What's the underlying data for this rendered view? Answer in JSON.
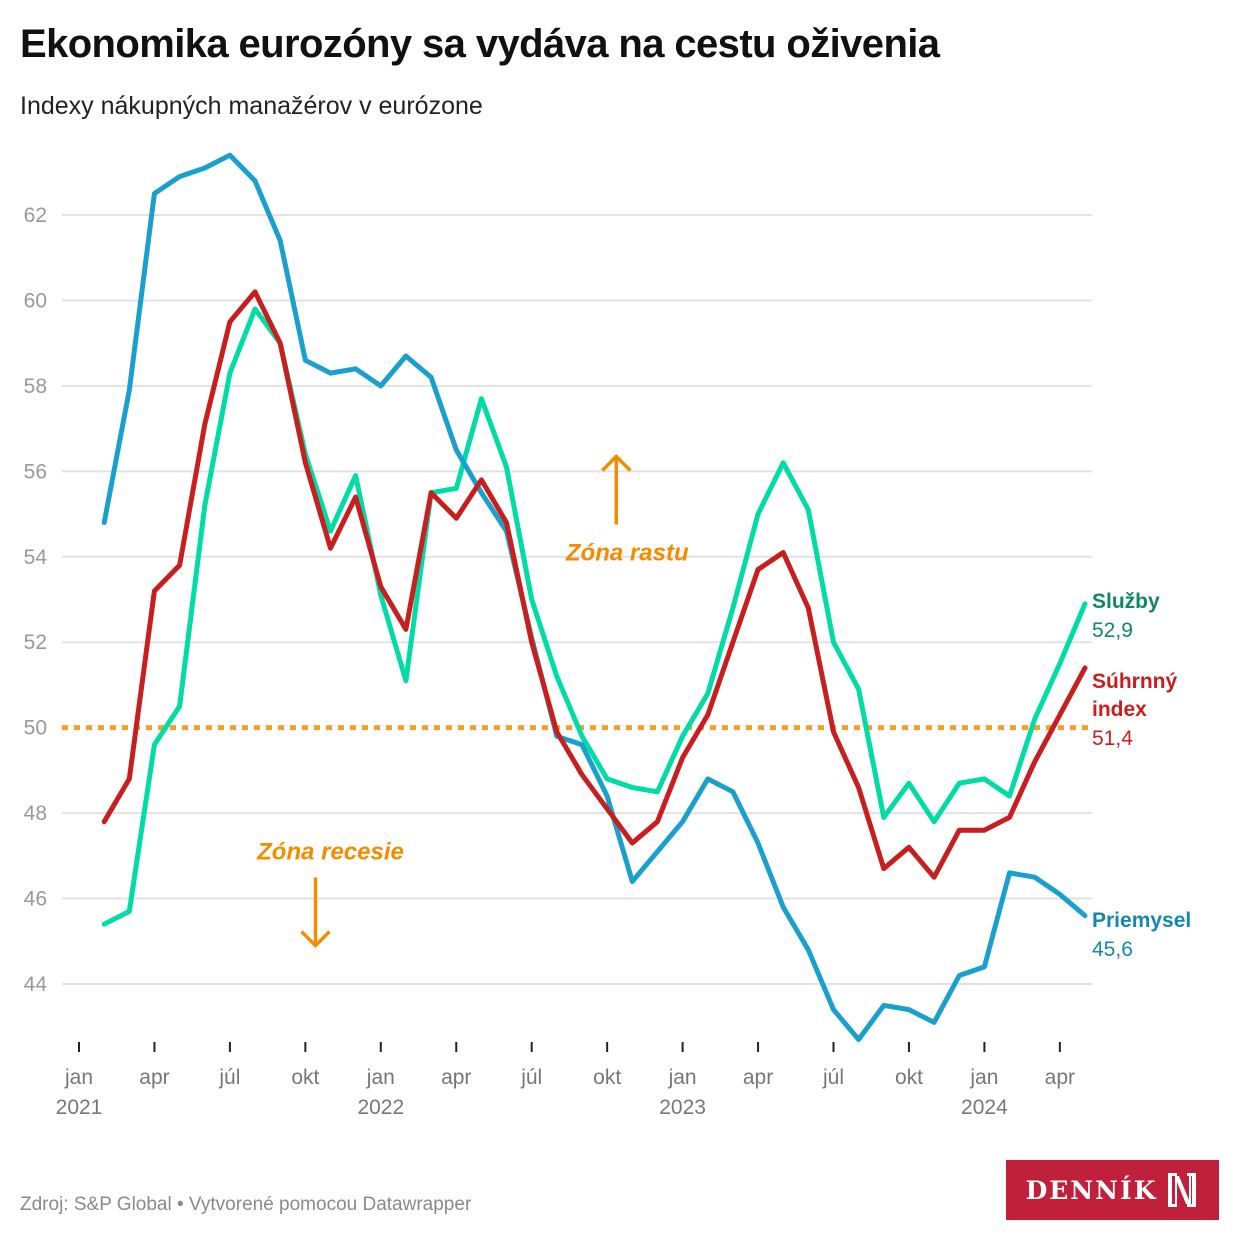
{
  "header": {
    "title": "Ekonomika eurozóny sa vydáva na cestu oživenia",
    "subtitle": "Indexy nákupných manažérov v eurózone"
  },
  "footer": {
    "source": "Zdroj: S&P Global • Vytvorené pomocou Datawrapper",
    "logo_text": "DENNÍK",
    "logo_icon": "n-logo-icon"
  },
  "colors": {
    "services": "#00dca5",
    "composite": "#c81e1e",
    "manufacturing": "#1aa0cf",
    "services_label": "#0f8a5f",
    "manufacturing_label": "#1587b3",
    "threshold": "#f7a028",
    "zone": "#f28c00"
  },
  "chart_data": {
    "type": "line",
    "title": "Ekonomika eurozóny sa vydáva na cestu oživenia",
    "subtitle": "Indexy nákupných manažérov v eurózone",
    "xlabel": "",
    "ylabel": "",
    "ylim": [
      42.5,
      63.5
    ],
    "yticks": [
      44,
      46,
      48,
      50,
      52,
      54,
      56,
      58,
      60,
      62
    ],
    "ytick_labels": [
      "44",
      "46",
      "48",
      "50",
      "52",
      "54",
      "56",
      "58",
      "60",
      "62"
    ],
    "grid": true,
    "x_start": "2021-02",
    "x_ticks": [
      {
        "month_index": 0,
        "label": "jan",
        "year": "2021"
      },
      {
        "month_index": 3,
        "label": "apr",
        "year": ""
      },
      {
        "month_index": 6,
        "label": "júl",
        "year": ""
      },
      {
        "month_index": 9,
        "label": "okt",
        "year": ""
      },
      {
        "month_index": 12,
        "label": "jan",
        "year": "2022"
      },
      {
        "month_index": 15,
        "label": "apr",
        "year": ""
      },
      {
        "month_index": 18,
        "label": "júl",
        "year": ""
      },
      {
        "month_index": 21,
        "label": "okt",
        "year": ""
      },
      {
        "month_index": 24,
        "label": "jan",
        "year": "2023"
      },
      {
        "month_index": 27,
        "label": "apr",
        "year": ""
      },
      {
        "month_index": 30,
        "label": "júl",
        "year": ""
      },
      {
        "month_index": 33,
        "label": "okt",
        "year": ""
      },
      {
        "month_index": 36,
        "label": "jan",
        "year": "2024"
      },
      {
        "month_index": 39,
        "label": "apr",
        "year": ""
      }
    ],
    "threshold": 50,
    "annotations": [
      {
        "text": "Zóna rastu",
        "direction": "up",
        "month_index": 21.8,
        "y": 54.1
      },
      {
        "text": "Zóna recesie",
        "direction": "down",
        "month_index": 10,
        "y": 47.1
      }
    ],
    "series": [
      {
        "key": "services",
        "name": "Služby",
        "last_label": "52,9",
        "values": [
          45.4,
          45.7,
          49.6,
          50.5,
          55.2,
          58.3,
          59.8,
          59.0,
          56.4,
          54.6,
          55.9,
          53.1,
          51.1,
          55.5,
          55.6,
          57.7,
          56.1,
          53.0,
          51.2,
          49.8,
          48.8,
          48.6,
          48.5,
          49.8,
          50.8,
          52.8,
          55.0,
          56.2,
          55.1,
          52.0,
          50.9,
          47.9,
          48.7,
          47.8,
          48.7,
          48.8,
          48.4,
          50.2,
          51.5,
          52.9
        ]
      },
      {
        "key": "composite",
        "name": "Súhrnný index",
        "name_lines": [
          "Súhrnný",
          "index"
        ],
        "last_label": "51,4",
        "values": [
          47.8,
          48.8,
          53.2,
          53.8,
          57.1,
          59.5,
          60.2,
          59.0,
          56.2,
          54.2,
          55.4,
          53.3,
          52.3,
          55.5,
          54.9,
          55.8,
          54.8,
          52.0,
          49.9,
          48.9,
          48.1,
          47.3,
          47.8,
          49.3,
          50.3,
          52.0,
          53.7,
          54.1,
          52.8,
          49.9,
          48.6,
          46.7,
          47.2,
          46.5,
          47.6,
          47.6,
          47.9,
          49.2,
          50.3,
          51.4
        ]
      },
      {
        "key": "manufacturing",
        "name": "Priemysel",
        "last_label": "45,6",
        "values": [
          54.8,
          57.9,
          62.5,
          62.9,
          63.1,
          63.4,
          62.8,
          61.4,
          58.6,
          58.3,
          58.4,
          58.0,
          58.7,
          58.2,
          56.5,
          55.5,
          54.6,
          52.1,
          49.8,
          49.6,
          48.4,
          46.4,
          47.1,
          47.8,
          48.8,
          48.5,
          47.3,
          45.8,
          44.8,
          43.4,
          42.7,
          43.5,
          43.4,
          43.1,
          44.2,
          44.4,
          46.6,
          46.5,
          46.1,
          45.6
        ]
      }
    ]
  }
}
